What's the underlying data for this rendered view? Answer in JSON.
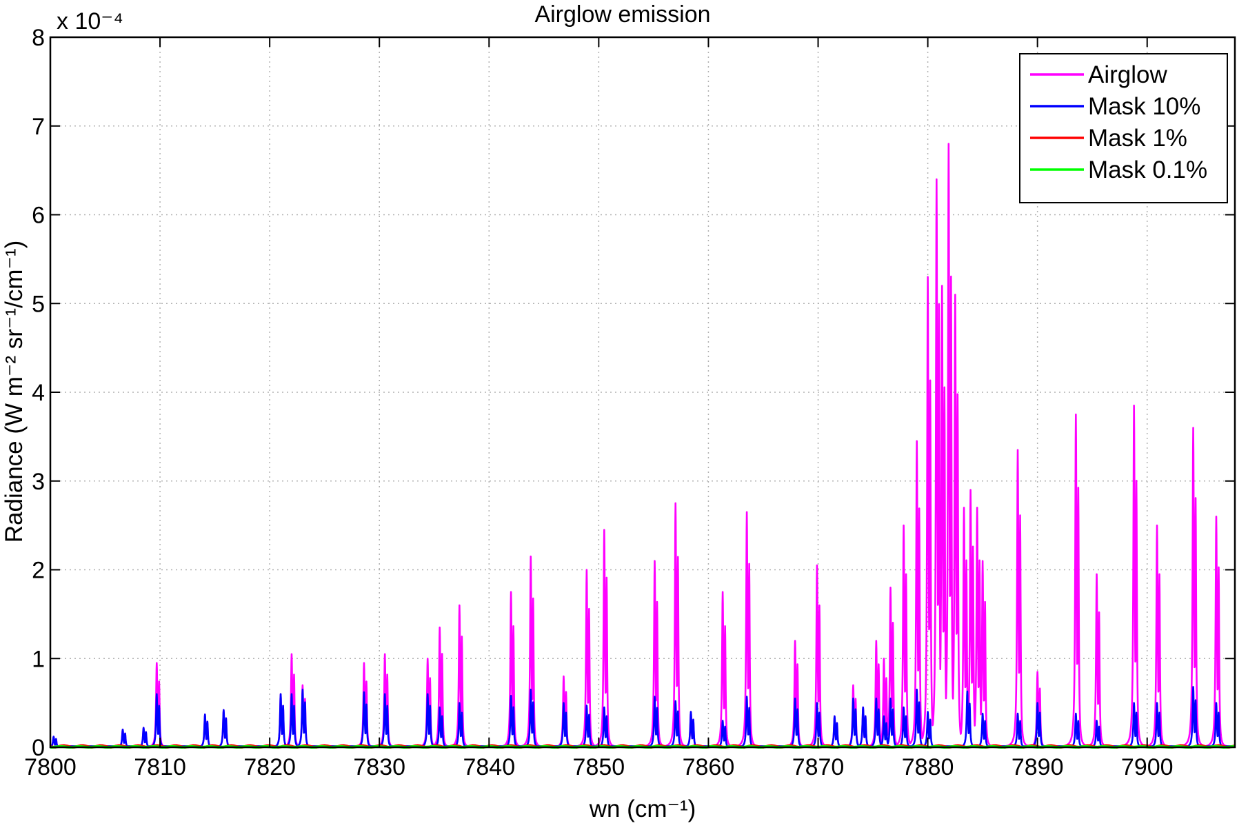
{
  "chart_data": {
    "type": "line",
    "title": "Airglow emission",
    "xlabel": "wn (cm⁻¹)",
    "ylabel": "Radiance (W m⁻² sr⁻¹/cm⁻¹)",
    "y_exponent_label": "x 10⁻⁴",
    "xlim": [
      7800,
      7908
    ],
    "ylim": [
      0,
      8
    ],
    "y_scale_factor": "1e-4",
    "grid": true,
    "legend_position": "top-right",
    "x_ticks": [
      7800,
      7810,
      7820,
      7830,
      7840,
      7850,
      7860,
      7870,
      7880,
      7890,
      7900
    ],
    "y_ticks": [
      0,
      1,
      2,
      3,
      4,
      5,
      6,
      7,
      8
    ],
    "line_width_note": "",
    "series": [
      {
        "name": "Airglow",
        "color": "#ff00ff",
        "peaks": [
          [
            7800.3,
            0.12
          ],
          [
            7806.6,
            0.2
          ],
          [
            7808.5,
            0.22
          ],
          [
            7809.7,
            0.95
          ],
          [
            7814.1,
            0.37
          ],
          [
            7815.8,
            0.42
          ],
          [
            7821.0,
            0.6
          ],
          [
            7822.0,
            1.05
          ],
          [
            7823.0,
            0.7
          ],
          [
            7828.6,
            0.95
          ],
          [
            7830.5,
            1.05
          ],
          [
            7834.4,
            1.0
          ],
          [
            7835.5,
            1.35
          ],
          [
            7837.3,
            1.6
          ],
          [
            7842.0,
            1.75
          ],
          [
            7843.8,
            2.15
          ],
          [
            7846.8,
            0.8
          ],
          [
            7848.9,
            2.0
          ],
          [
            7850.5,
            2.45
          ],
          [
            7855.1,
            2.1
          ],
          [
            7857.0,
            2.75
          ],
          [
            7858.4,
            0.4
          ],
          [
            7861.3,
            1.75
          ],
          [
            7863.5,
            2.65
          ],
          [
            7867.9,
            1.2
          ],
          [
            7869.9,
            2.05
          ],
          [
            7871.5,
            0.35
          ],
          [
            7873.2,
            0.7
          ],
          [
            7874.1,
            0.45
          ],
          [
            7875.3,
            1.2
          ],
          [
            7876.0,
            1.0
          ],
          [
            7876.6,
            1.8
          ],
          [
            7877.8,
            2.5
          ],
          [
            7879.0,
            3.45
          ],
          [
            7880.0,
            5.3
          ],
          [
            7880.8,
            6.4
          ],
          [
            7881.3,
            5.2
          ],
          [
            7881.9,
            6.8
          ],
          [
            7882.5,
            5.1
          ],
          [
            7883.3,
            2.7
          ],
          [
            7883.9,
            2.9
          ],
          [
            7884.5,
            2.7
          ],
          [
            7885.0,
            2.1
          ],
          [
            7888.2,
            3.35
          ],
          [
            7890.0,
            0.85
          ],
          [
            7893.5,
            3.75
          ],
          [
            7895.4,
            1.95
          ],
          [
            7898.8,
            3.85
          ],
          [
            7900.9,
            2.5
          ],
          [
            7904.2,
            3.6
          ],
          [
            7906.3,
            2.6
          ]
        ]
      },
      {
        "name": "Mask 10%",
        "color": "#0000ff",
        "peaks": [
          [
            7800.3,
            0.12
          ],
          [
            7806.6,
            0.2
          ],
          [
            7808.5,
            0.22
          ],
          [
            7809.7,
            0.6
          ],
          [
            7814.1,
            0.37
          ],
          [
            7815.8,
            0.42
          ],
          [
            7821.0,
            0.6
          ],
          [
            7822.0,
            0.6
          ],
          [
            7823.0,
            0.65
          ],
          [
            7828.6,
            0.62
          ],
          [
            7830.5,
            0.6
          ],
          [
            7834.4,
            0.6
          ],
          [
            7835.5,
            0.45
          ],
          [
            7837.3,
            0.5
          ],
          [
            7842.0,
            0.58
          ],
          [
            7843.8,
            0.65
          ],
          [
            7846.8,
            0.5
          ],
          [
            7848.9,
            0.47
          ],
          [
            7850.5,
            0.45
          ],
          [
            7855.1,
            0.57
          ],
          [
            7857.0,
            0.52
          ],
          [
            7858.4,
            0.4
          ],
          [
            7861.3,
            0.3
          ],
          [
            7863.5,
            0.57
          ],
          [
            7867.9,
            0.55
          ],
          [
            7869.9,
            0.5
          ],
          [
            7871.5,
            0.35
          ],
          [
            7873.2,
            0.55
          ],
          [
            7874.1,
            0.45
          ],
          [
            7875.3,
            0.55
          ],
          [
            7876.0,
            0.35
          ],
          [
            7876.6,
            0.55
          ],
          [
            7877.8,
            0.45
          ],
          [
            7879.0,
            0.65
          ],
          [
            7880.0,
            0.4
          ],
          [
            7883.6,
            0.63
          ],
          [
            7885.0,
            0.38
          ],
          [
            7888.2,
            0.38
          ],
          [
            7890.0,
            0.5
          ],
          [
            7893.5,
            0.38
          ],
          [
            7895.4,
            0.3
          ],
          [
            7898.8,
            0.5
          ],
          [
            7900.9,
            0.5
          ],
          [
            7904.2,
            0.68
          ],
          [
            7906.3,
            0.5
          ]
        ]
      },
      {
        "name": "Mask 1%",
        "color": "#ff0000",
        "value_range": [
          0,
          0.05
        ]
      },
      {
        "name": "Mask 0.1%",
        "color": "#00ff00",
        "value_range": [
          0,
          0.02
        ]
      }
    ]
  }
}
